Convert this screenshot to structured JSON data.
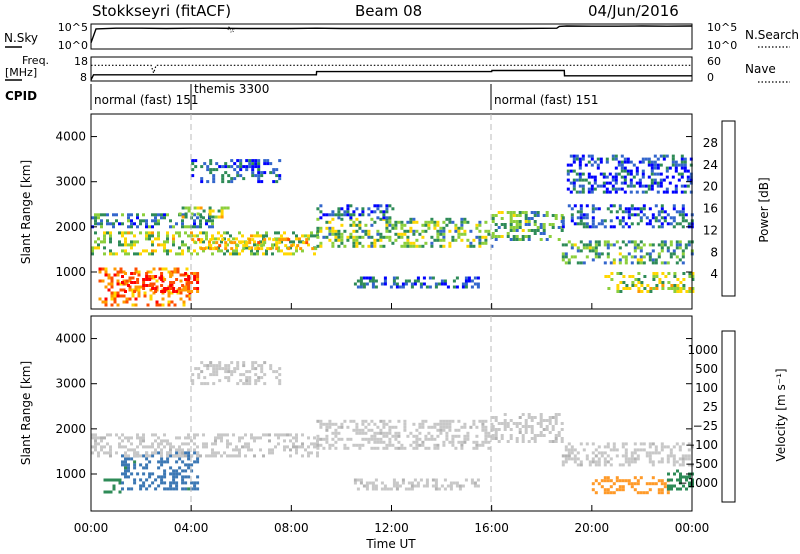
{
  "header": {
    "station": "Stokkseyri (fitACF)",
    "beam": "Beam 08",
    "date": "04/Jun/2016"
  },
  "noise_panel": {
    "left_label": "N.Sky",
    "left_ticks": [
      "10^5",
      "10^0"
    ],
    "right_ticks": [
      "10^5",
      "10^0"
    ],
    "right_label": "N.Search"
  },
  "freq_panel": {
    "label_line1": "Freq.",
    "label_line2": "[MHz]",
    "left_ticks": [
      "18",
      "8"
    ],
    "right_ticks": [
      "60",
      "0"
    ],
    "right_label": "Nave"
  },
  "cpid_panel": {
    "label": "CPID",
    "programs": [
      {
        "start_hour": 0,
        "text": "normal (fast)  151"
      },
      {
        "start_hour": 4,
        "text": "themis 3300"
      },
      {
        "start_hour": 16,
        "text": "normal (fast)  151"
      }
    ]
  },
  "power_panel": {
    "ylabel": "Slant Range [km]",
    "yticks": [
      "4000",
      "3000",
      "2000",
      "1000"
    ],
    "colorbar_label": "Power [dB]",
    "colorbar_ticks": [
      "28",
      "24",
      "20",
      "16",
      "12",
      "8",
      "4"
    ],
    "colorbar_colors": [
      "#ff0000",
      "#ff4d00",
      "#ff9a00",
      "#ffd700",
      "#8ccf3c",
      "#2e8b57",
      "#3366cc",
      "#0000ff"
    ]
  },
  "velocity_panel": {
    "ylabel": "Slant Range [km]",
    "yticks": [
      "4000",
      "3000",
      "2000",
      "1000"
    ],
    "colorbar_label": "Velocity [m s⁻¹]",
    "colorbar_ticks": [
      "1000",
      "500",
      "100",
      "25",
      "−25",
      "−100",
      "−500",
      "−1000"
    ],
    "colorbar_colors": [
      "#1d3c9e",
      "#3c78b4",
      "#2e8b57",
      "#5ac84a",
      "#c8c8c8",
      "#c8c8c8",
      "#ff9a28",
      "#ff5a00",
      "#ff0000"
    ]
  },
  "x_axis": {
    "xlabel": "Time UT",
    "ticks": [
      "00:00",
      "04:00",
      "08:00",
      "12:00",
      "16:00",
      "20:00",
      "00:00"
    ]
  },
  "chart_data": [
    {
      "type": "line",
      "title": "Stokkseyri (fitACF)  Beam 08  04/Jun/2016",
      "xlabel": "",
      "ylabel": "N.Sky",
      "x_range_hours": [
        0,
        24
      ],
      "yscale": "log",
      "ylim": [
        1,
        100000
      ],
      "series": [
        {
          "name": "N.Sky",
          "x": [
            0,
            0.2,
            1,
            2,
            3,
            4,
            5,
            6,
            7,
            8,
            9,
            10,
            11,
            12,
            13,
            14,
            15,
            16,
            17,
            18,
            18.6,
            18.7,
            19,
            20,
            21,
            22,
            23,
            24
          ],
          "values": [
            10,
            20000,
            30000,
            30000,
            25000,
            30000,
            30000,
            25000,
            25000,
            25000,
            30000,
            25000,
            25000,
            25000,
            25000,
            25000,
            25000,
            25000,
            25000,
            28000,
            30000,
            80000,
            100000,
            90000,
            90000,
            100000,
            90000,
            100000
          ]
        }
      ]
    },
    {
      "type": "line",
      "ylabel": "Freq. [MHz]",
      "x_range_hours": [
        0,
        24
      ],
      "ylim": [
        8,
        18
      ],
      "series": [
        {
          "name": "Freq.",
          "x": [
            0,
            0.1,
            9,
            9.01,
            16,
            16.01,
            18.9,
            18.91,
            24
          ],
          "values": [
            8,
            10.5,
            10.5,
            12,
            12,
            12.5,
            12.5,
            10,
            10
          ]
        },
        {
          "name": "Nave",
          "x": [
            0,
            2.4,
            2.5,
            2.6,
            24
          ],
          "values": [
            42,
            42,
            20,
            42,
            42
          ]
        }
      ]
    },
    {
      "type": "heatmap",
      "ylabel": "Slant Range [km]",
      "xlabel": "",
      "x_range_hours": [
        0,
        24
      ],
      "ylim": [
        180,
        4500
      ],
      "colorbar": {
        "label": "Power [dB]",
        "range": [
          0,
          30
        ]
      },
      "regions": [
        {
          "start": 0.3,
          "end": 4.0,
          "range_lo": 300,
          "range_hi": 1100,
          "value": 22
        },
        {
          "start": 1.2,
          "end": 4.2,
          "range_lo": 600,
          "range_hi": 1000,
          "value": 26
        },
        {
          "start": 0.0,
          "end": 9.0,
          "range_lo": 1400,
          "range_hi": 1900,
          "value": 14
        },
        {
          "start": 4.0,
          "end": 9.0,
          "range_lo": 1500,
          "range_hi": 1750,
          "value": 18
        },
        {
          "start": 0.0,
          "end": 5.0,
          "range_lo": 2000,
          "range_hi": 2300,
          "value": 8
        },
        {
          "start": 3.5,
          "end": 5.5,
          "range_lo": 2200,
          "range_hi": 2450,
          "value": 14
        },
        {
          "start": 4.0,
          "end": 7.5,
          "range_lo": 3000,
          "range_hi": 3500,
          "value": 6
        },
        {
          "start": 9.0,
          "end": 16.0,
          "range_lo": 1600,
          "range_hi": 2200,
          "value": 12
        },
        {
          "start": 9.0,
          "end": 12.0,
          "range_lo": 2200,
          "range_hi": 2500,
          "value": 6
        },
        {
          "start": 10.5,
          "end": 15.5,
          "range_lo": 700,
          "range_hi": 900,
          "value": 6
        },
        {
          "start": 16.0,
          "end": 18.8,
          "range_lo": 1750,
          "range_hi": 2350,
          "value": 10
        },
        {
          "start": 18.8,
          "end": 24.0,
          "range_lo": 1200,
          "range_hi": 1700,
          "value": 10
        },
        {
          "start": 18.8,
          "end": 24.0,
          "range_lo": 2000,
          "range_hi": 2500,
          "value": 6
        },
        {
          "start": 20.5,
          "end": 24.0,
          "range_lo": 600,
          "range_hi": 1000,
          "value": 14
        },
        {
          "start": 19.0,
          "end": 24.0,
          "range_lo": 2800,
          "range_hi": 3600,
          "value": 5
        }
      ]
    },
    {
      "type": "heatmap",
      "ylabel": "Slant Range [km]",
      "xlabel": "Time UT",
      "x_range_hours": [
        0,
        24
      ],
      "ylim": [
        180,
        4500
      ],
      "colorbar": {
        "label": "Velocity [m s⁻¹]",
        "range": [
          -1000,
          1000
        ]
      },
      "regions": [
        {
          "start": 0.5,
          "end": 1.2,
          "range_lo": 600,
          "range_hi": 900,
          "value": 300
        },
        {
          "start": 1.2,
          "end": 4.2,
          "range_lo": 700,
          "range_hi": 1500,
          "value": 600
        },
        {
          "start": 0.0,
          "end": 9.0,
          "range_lo": 1400,
          "range_hi": 1900,
          "value": 0
        },
        {
          "start": 9.0,
          "end": 16.0,
          "range_lo": 1600,
          "range_hi": 2200,
          "value": 0
        },
        {
          "start": 10.5,
          "end": 15.5,
          "range_lo": 700,
          "range_hi": 900,
          "value": 0
        },
        {
          "start": 16.0,
          "end": 18.8,
          "range_lo": 1750,
          "range_hi": 2350,
          "value": 0
        },
        {
          "start": 18.8,
          "end": 24.0,
          "range_lo": 1200,
          "range_hi": 1700,
          "value": 0
        },
        {
          "start": 20.0,
          "end": 23.0,
          "range_lo": 600,
          "range_hi": 950,
          "value": -300
        },
        {
          "start": 23.0,
          "end": 24.0,
          "range_lo": 700,
          "range_hi": 1100,
          "value": 200
        },
        {
          "start": 4.0,
          "end": 7.5,
          "range_lo": 3000,
          "range_hi": 3500,
          "value": 0
        }
      ]
    }
  ]
}
